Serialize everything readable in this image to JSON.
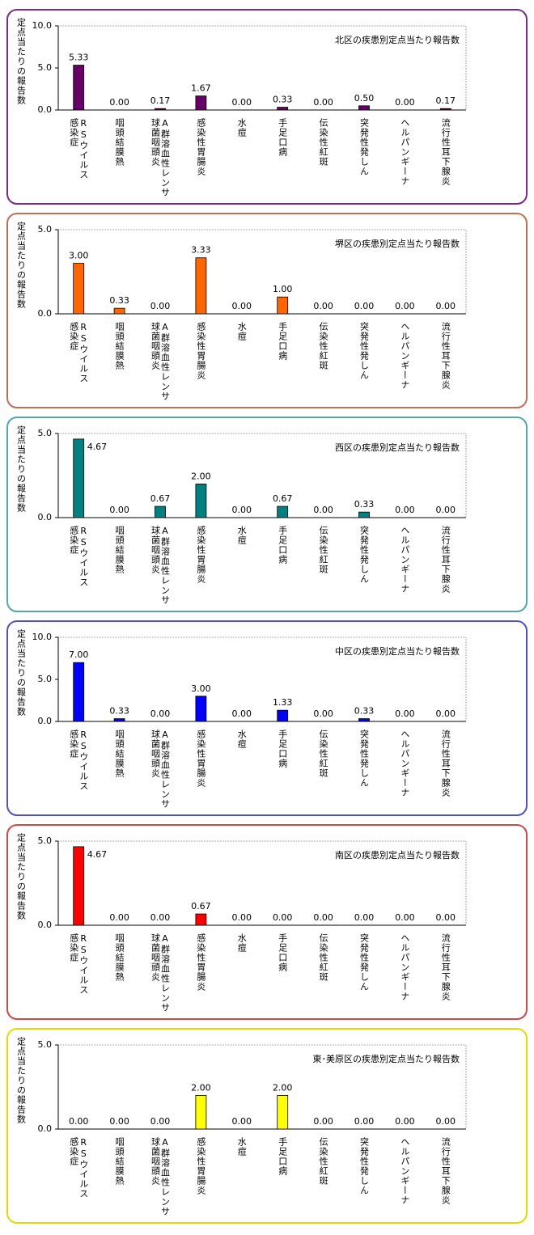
{
  "chart_data": [
    {
      "type": "bar",
      "title": "北区の疾患別定点当たり報告数",
      "y_label": "定点当たりの報告数",
      "color": "#660066",
      "frame_color": "#7a2a8a",
      "categories": [
        [
          "RSウイルス",
          "感染症"
        ],
        [
          "咽頭結膜熱"
        ],
        [
          "A群溶血性レンサ",
          "球菌咽頭炎"
        ],
        [
          "感染性胃腸炎"
        ],
        [
          "水痘"
        ],
        [
          "手足口病"
        ],
        [
          "伝染性紅斑"
        ],
        [
          "突発性発しん"
        ],
        [
          "ヘルパンギーナ"
        ],
        [
          "流行性耳下腺炎"
        ]
      ],
      "values": [
        5.33,
        0,
        0.17,
        1.67,
        0,
        0.33,
        0,
        0.5,
        0,
        0.17
      ],
      "value_labels": [
        "5.33",
        "0.00",
        "0.17",
        "1.67",
        "0.00",
        "0.33",
        "0.00",
        "0.50",
        "0.00",
        "0.17"
      ],
      "ylim": [
        0,
        10
      ],
      "yticks": [
        {
          "value": 0,
          "label": "0.0"
        },
        {
          "value": 5,
          "label": "5.0"
        },
        {
          "value": 10,
          "label": "10.0"
        }
      ]
    },
    {
      "type": "bar",
      "title": "堺区の疾患別定点当たり報告数",
      "y_label": "定点当たりの報告数",
      "color": "#ff6600",
      "frame_color": "#c07050",
      "categories": [
        [
          "RSウイルス",
          "感染症"
        ],
        [
          "咽頭結膜熱"
        ],
        [
          "A群溶血性レンサ",
          "球菌咽頭炎"
        ],
        [
          "感染性胃腸炎"
        ],
        [
          "水痘"
        ],
        [
          "手足口病"
        ],
        [
          "伝染性紅斑"
        ],
        [
          "突発性発しん"
        ],
        [
          "ヘルパンギーナ"
        ],
        [
          "流行性耳下腺炎"
        ]
      ],
      "values": [
        3,
        0.33,
        0,
        3.33,
        0,
        1,
        0,
        0,
        0,
        0
      ],
      "value_labels": [
        "3.00",
        "0.33",
        "0.00",
        "3.33",
        "0.00",
        "1.00",
        "0.00",
        "0.00",
        "0.00",
        "0.00"
      ],
      "ylim": [
        0,
        5
      ],
      "yticks": [
        {
          "value": 0,
          "label": "0.0"
        },
        {
          "value": 5,
          "label": "5.0"
        }
      ]
    },
    {
      "type": "bar",
      "title": "西区の疾患別定点当たり報告数",
      "y_label": "定点当たりの報告数",
      "color": "#008080",
      "frame_color": "#50a8a8",
      "categories": [
        [
          "RSウイルス",
          "感染症"
        ],
        [
          "咽頭結膜熱"
        ],
        [
          "A群溶血性レンサ",
          "球菌咽頭炎"
        ],
        [
          "感染性胃腸炎"
        ],
        [
          "水痘"
        ],
        [
          "手足口病"
        ],
        [
          "伝染性紅斑"
        ],
        [
          "突発性発しん"
        ],
        [
          "ヘルパンギーナ"
        ],
        [
          "流行性耳下腺炎"
        ]
      ],
      "values": [
        4.67,
        0,
        0.67,
        2,
        0,
        0.67,
        0,
        0.33,
        0,
        0
      ],
      "value_labels": [
        "4.67",
        "0.00",
        "0.67",
        "2.00",
        "0.00",
        "0.67",
        "0.00",
        "0.33",
        "0.00",
        "0.00"
      ],
      "ylim": [
        0,
        5
      ],
      "yticks": [
        {
          "value": 0,
          "label": "0.0"
        },
        {
          "value": 5,
          "label": "5.0"
        }
      ]
    },
    {
      "type": "bar",
      "title": "中区の疾患別定点当たり報告数",
      "y_label": "定点当たりの報告数",
      "color": "#0000ff",
      "frame_color": "#5050c8",
      "categories": [
        [
          "RSウイルス",
          "感染症"
        ],
        [
          "咽頭結膜熱"
        ],
        [
          "A群溶血性レンサ",
          "球菌咽頭炎"
        ],
        [
          "感染性胃腸炎"
        ],
        [
          "水痘"
        ],
        [
          "手足口病"
        ],
        [
          "伝染性紅斑"
        ],
        [
          "突発性発しん"
        ],
        [
          "ヘルパンギーナ"
        ],
        [
          "流行性耳下腺炎"
        ]
      ],
      "values": [
        7,
        0.33,
        0,
        3,
        0,
        1.33,
        0,
        0.33,
        0,
        0
      ],
      "value_labels": [
        "7.00",
        "0.33",
        "0.00",
        "3.00",
        "0.00",
        "1.33",
        "0.00",
        "0.33",
        "0.00",
        "0.00"
      ],
      "ylim": [
        0,
        10
      ],
      "yticks": [
        {
          "value": 0,
          "label": "0.0"
        },
        {
          "value": 5,
          "label": "5.0"
        },
        {
          "value": 10,
          "label": "10.0"
        }
      ]
    },
    {
      "type": "bar",
      "title": "南区の疾患別定点当たり報告数",
      "y_label": "定点当たりの報告数",
      "color": "#ff0000",
      "frame_color": "#d04848",
      "categories": [
        [
          "RSウイルス",
          "感染症"
        ],
        [
          "咽頭結膜熱"
        ],
        [
          "A群溶血性レンサ",
          "球菌咽頭炎"
        ],
        [
          "感染性胃腸炎"
        ],
        [
          "水痘"
        ],
        [
          "手足口病"
        ],
        [
          "伝染性紅斑"
        ],
        [
          "突発性発しん"
        ],
        [
          "ヘルパンギーナ"
        ],
        [
          "流行性耳下腺炎"
        ]
      ],
      "values": [
        4.67,
        0,
        0,
        0.67,
        0,
        0,
        0,
        0,
        0,
        0
      ],
      "value_labels": [
        "4.67",
        "0.00",
        "0.00",
        "0.67",
        "0.00",
        "0.00",
        "0.00",
        "0.00",
        "0.00",
        "0.00"
      ],
      "ylim": [
        0,
        5
      ],
      "yticks": [
        {
          "value": 0,
          "label": "0.0"
        },
        {
          "value": 5,
          "label": "5.0"
        }
      ]
    },
    {
      "type": "bar",
      "title": "東･美原区の疾患別定点当たり報告数",
      "y_label": "定点当たりの報告数",
      "color": "#ffff00",
      "frame_color": "#e8d800",
      "categories": [
        [
          "RSウイルス",
          "感染症"
        ],
        [
          "咽頭結膜熱"
        ],
        [
          "A群溶血性レンサ",
          "球菌咽頭炎"
        ],
        [
          "感染性胃腸炎"
        ],
        [
          "水痘"
        ],
        [
          "手足口病"
        ],
        [
          "伝染性紅斑"
        ],
        [
          "突発性発しん"
        ],
        [
          "ヘルパンギーナ"
        ],
        [
          "流行性耳下腺炎"
        ]
      ],
      "values": [
        0,
        0,
        0,
        2,
        0,
        2,
        0,
        0,
        0,
        0
      ],
      "value_labels": [
        "0.00",
        "0.00",
        "0.00",
        "2.00",
        "0.00",
        "2.00",
        "0.00",
        "0.00",
        "0.00",
        "0.00"
      ],
      "ylim": [
        0,
        5
      ],
      "yticks": [
        {
          "value": 0,
          "label": "0.0"
        },
        {
          "value": 5,
          "label": "5.0"
        }
      ]
    }
  ]
}
